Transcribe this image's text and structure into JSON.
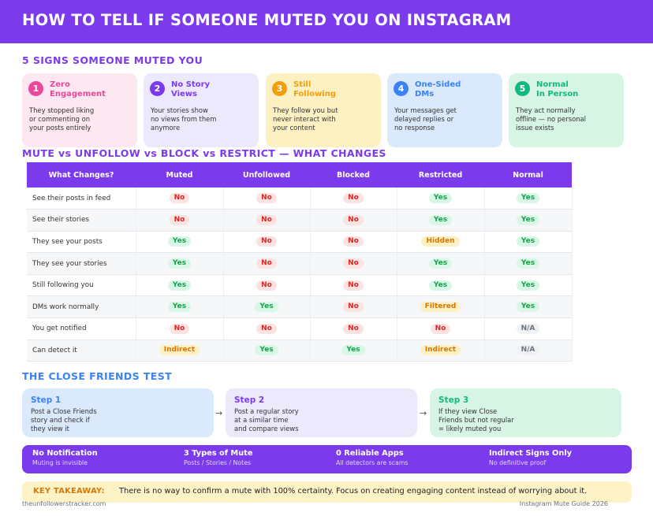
{
  "header": {
    "title": "HOW TO TELL IF SOMEONE MUTED YOU ON INSTAGRAM"
  },
  "signs_section": {
    "title": "5 SIGNS SOMEONE MUTED YOU",
    "color": "#7c3aed"
  },
  "signs": [
    {
      "num": "1",
      "title": "Zero\nEngagement",
      "desc": "They stopped liking\nor commenting on\nyour posts entirely",
      "bg": "#fde7f1",
      "accent": "#ec4899"
    },
    {
      "num": "2",
      "title": "No Story\nViews",
      "desc": "Your stories show\nno views from them\nanymore",
      "bg": "#ece9fd",
      "accent": "#7c3aed"
    },
    {
      "num": "3",
      "title": "Still\nFollowing",
      "desc": "They follow you but\nnever interact with\nyour content",
      "bg": "#fdf1c4",
      "accent": "#f59e0b"
    },
    {
      "num": "4",
      "title": "One-Sided\nDMs",
      "desc": "Your messages get\ndelayed replies or\nno response",
      "bg": "#dbe9fd",
      "accent": "#3b82f6"
    },
    {
      "num": "5",
      "title": "Normal\nIn Person",
      "desc": "They act normally\noffline — no personal\nissue exists",
      "bg": "#d6f5e4",
      "accent": "#10b981"
    }
  ],
  "compare_section": {
    "title": "MUTE vs UNFOLLOW vs BLOCK vs RESTRICT — WHAT CHANGES",
    "color": "#7c3aed"
  },
  "table": {
    "headers": [
      "What Changes?",
      "Muted",
      "Unfollowed",
      "Blocked",
      "Restricted",
      "Normal"
    ],
    "rows": [
      {
        "label": "See their posts in feed",
        "cells": [
          {
            "t": "No",
            "s": "no"
          },
          {
            "t": "No",
            "s": "no"
          },
          {
            "t": "No",
            "s": "no"
          },
          {
            "t": "Yes",
            "s": "yes"
          },
          {
            "t": "Yes",
            "s": "yes"
          }
        ]
      },
      {
        "label": "See their stories",
        "cells": [
          {
            "t": "No",
            "s": "no"
          },
          {
            "t": "No",
            "s": "no"
          },
          {
            "t": "No",
            "s": "no"
          },
          {
            "t": "Yes",
            "s": "yes"
          },
          {
            "t": "Yes",
            "s": "yes"
          }
        ]
      },
      {
        "label": "They see your posts",
        "cells": [
          {
            "t": "Yes",
            "s": "yes"
          },
          {
            "t": "No",
            "s": "no"
          },
          {
            "t": "No",
            "s": "no"
          },
          {
            "t": "Hidden",
            "s": "warn"
          },
          {
            "t": "Yes",
            "s": "yes"
          }
        ]
      },
      {
        "label": "They see your stories",
        "cells": [
          {
            "t": "Yes",
            "s": "yes"
          },
          {
            "t": "No",
            "s": "no"
          },
          {
            "t": "No",
            "s": "no"
          },
          {
            "t": "Yes",
            "s": "yes"
          },
          {
            "t": "Yes",
            "s": "yes"
          }
        ]
      },
      {
        "label": "Still following you",
        "cells": [
          {
            "t": "Yes",
            "s": "yes"
          },
          {
            "t": "No",
            "s": "no"
          },
          {
            "t": "No",
            "s": "no"
          },
          {
            "t": "Yes",
            "s": "yes"
          },
          {
            "t": "Yes",
            "s": "yes"
          }
        ]
      },
      {
        "label": "DMs work normally",
        "cells": [
          {
            "t": "Yes",
            "s": "yes"
          },
          {
            "t": "Yes",
            "s": "yes"
          },
          {
            "t": "No",
            "s": "no"
          },
          {
            "t": "Filtered",
            "s": "warn"
          },
          {
            "t": "Yes",
            "s": "yes"
          }
        ]
      },
      {
        "label": "You get notified",
        "cells": [
          {
            "t": "No",
            "s": "no"
          },
          {
            "t": "No",
            "s": "no"
          },
          {
            "t": "No",
            "s": "no"
          },
          {
            "t": "No",
            "s": "no"
          },
          {
            "t": "N/A",
            "s": "na"
          }
        ]
      },
      {
        "label": "Can detect it",
        "cells": [
          {
            "t": "Indirect",
            "s": "warn"
          },
          {
            "t": "Yes",
            "s": "yes"
          },
          {
            "t": "Yes",
            "s": "yes"
          },
          {
            "t": "Indirect",
            "s": "warn"
          },
          {
            "t": "N/A",
            "s": "na"
          }
        ]
      }
    ]
  },
  "test_section": {
    "title": "THE CLOSE FRIENDS TEST",
    "color": "#3b82f6"
  },
  "steps": [
    {
      "title": "Step 1",
      "desc": "Post a Close Friends\nstory and check if\nthey view it",
      "bg": "#dbe9fd",
      "accent": "#3b82f6"
    },
    {
      "title": "Step 2",
      "desc": "Post a regular story\nat a similar time\nand compare views",
      "bg": "#ece9fd",
      "accent": "#7c3aed"
    },
    {
      "title": "Step 3",
      "desc": "If they view Close\nFriends but not regular\n= likely muted you",
      "bg": "#d6f5e4",
      "accent": "#10b981"
    }
  ],
  "arrows": [
    "→",
    "→"
  ],
  "stats": [
    {
      "label": "No Notification",
      "sub": "Muting is invisible"
    },
    {
      "label": "3 Types of Mute",
      "sub": "Posts / Stories / Notes"
    },
    {
      "label": "0 Reliable Apps",
      "sub": "All detectors are scams"
    },
    {
      "label": "Indirect Signs Only",
      "sub": "No definitive proof"
    }
  ],
  "takeaway": {
    "label": "KEY TAKEAWAY:",
    "text": "There is no way to confirm a mute with 100% certainty. Focus on creating engaging content instead of worrying about it."
  },
  "footer": {
    "left": "theunfollowerstracker.com",
    "right": "Instagram Mute Guide 2026"
  }
}
